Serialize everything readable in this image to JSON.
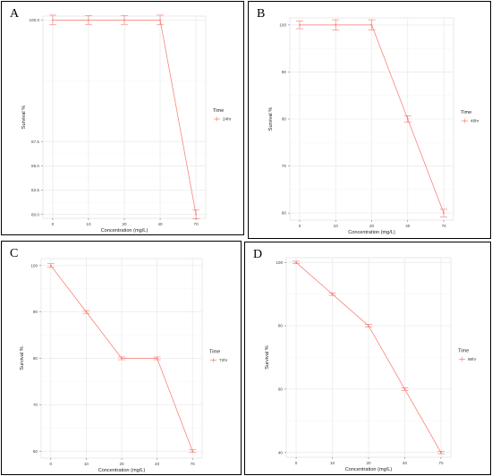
{
  "colors": {
    "series": "#f8766d",
    "grid": "#ebebeb",
    "axis": "#333333",
    "frame": "#000000"
  },
  "chart_data": [
    {
      "type": "line",
      "panel_label": "A",
      "xlabel": "Concentration (mg/L)",
      "ylabel": "Survival %",
      "categories": [
        "0",
        "10",
        "20",
        "40",
        "70"
      ],
      "y_ticks": [
        "80.0",
        "82.5",
        "85.0",
        "87.5",
        "100.0"
      ],
      "ylim": [
        79.6,
        100.4
      ],
      "legend_title": "Time",
      "legend_position": "right",
      "grid": true,
      "series": [
        {
          "name": "24hr",
          "values": [
            100,
            100,
            100,
            100,
            80
          ],
          "error": [
            0.5,
            0.45,
            0.45,
            0.5,
            0.45
          ]
        }
      ]
    },
    {
      "type": "line",
      "panel_label": "B",
      "xlabel": "Concentration (mg/L)",
      "ylabel": "Survival %",
      "categories": [
        "0",
        "10",
        "20",
        "40",
        "70"
      ],
      "y_ticks": [
        "60",
        "70",
        "80",
        "90",
        "100"
      ],
      "ylim": [
        58.5,
        101.5
      ],
      "legend_title": "Time",
      "legend_position": "right",
      "grid": true,
      "series": [
        {
          "name": "48hr",
          "values": [
            100,
            100,
            100,
            80,
            60
          ],
          "error": [
            0.8,
            1.1,
            1.1,
            0.7,
            0.8
          ]
        }
      ]
    },
    {
      "type": "line",
      "panel_label": "C",
      "xlabel": "Concentration (mg/L)",
      "ylabel": "Survival %",
      "categories": [
        "0",
        "10",
        "20",
        "40",
        "70"
      ],
      "y_ticks": [
        "60",
        "70",
        "80",
        "90",
        "100"
      ],
      "ylim": [
        58.5,
        101.5
      ],
      "legend_title": "Time",
      "legend_position": "right",
      "grid": true,
      "series": [
        {
          "name": "72hr",
          "values": [
            100,
            90,
            80,
            80,
            60
          ],
          "error": [
            0.4,
            0.3,
            0.3,
            0.3,
            0.3
          ]
        }
      ]
    },
    {
      "type": "line",
      "panel_label": "D",
      "xlabel": "Concentration (mg/L)",
      "ylabel": "Survival %",
      "categories": [
        "0",
        "10",
        "20",
        "40",
        "70"
      ],
      "y_ticks": [
        "40",
        "60",
        "80",
        "100"
      ],
      "ylim": [
        38.5,
        101.5
      ],
      "legend_title": "Time",
      "legend_position": "right",
      "grid": true,
      "series": [
        {
          "name": "96hr",
          "values": [
            100,
            90,
            80,
            60,
            40
          ],
          "error": [
            0.4,
            0.4,
            0.4,
            0.4,
            0.4
          ]
        }
      ]
    }
  ]
}
